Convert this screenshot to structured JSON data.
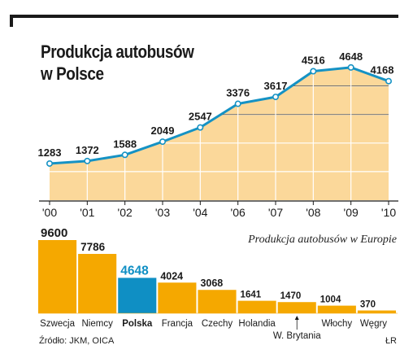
{
  "title_line1": "Produkcja autobusów",
  "title_line2": "w Polsce",
  "europe_subtitle": "Produkcja autobusów w Europie",
  "source": "Źródło: JKM, OICA",
  "credit": "ŁR",
  "colors": {
    "area": "#fbd89a",
    "line": "#1592c4",
    "bar": "#f5a800",
    "highlight_bar": "#0f8fc4",
    "frame": "#1a1a1a"
  },
  "chart_data": [
    {
      "type": "area",
      "title": "Produkcja autobusów w Polsce",
      "x": [
        "'00",
        "'01",
        "'02",
        "'03",
        "'04",
        "'06",
        "'07",
        "'08",
        "'09",
        "'10"
      ],
      "values": [
        1283,
        1372,
        1588,
        2049,
        2547,
        3376,
        3617,
        4516,
        4648,
        4168
      ],
      "ylim": [
        0,
        5300
      ],
      "grid": true,
      "xlabel": "",
      "ylabel": ""
    },
    {
      "type": "bar",
      "title": "Produkcja autobusów w Europie",
      "categories": [
        "Szwecja",
        "Niemcy",
        "Polska",
        "Francja",
        "Czechy",
        "Holandia",
        "W. Brytania",
        "Włochy",
        "Węgry"
      ],
      "values": [
        9600,
        7786,
        4648,
        4024,
        3068,
        1641,
        1470,
        1004,
        370
      ],
      "highlight": "Polska",
      "xlabel": "",
      "ylabel": ""
    }
  ]
}
